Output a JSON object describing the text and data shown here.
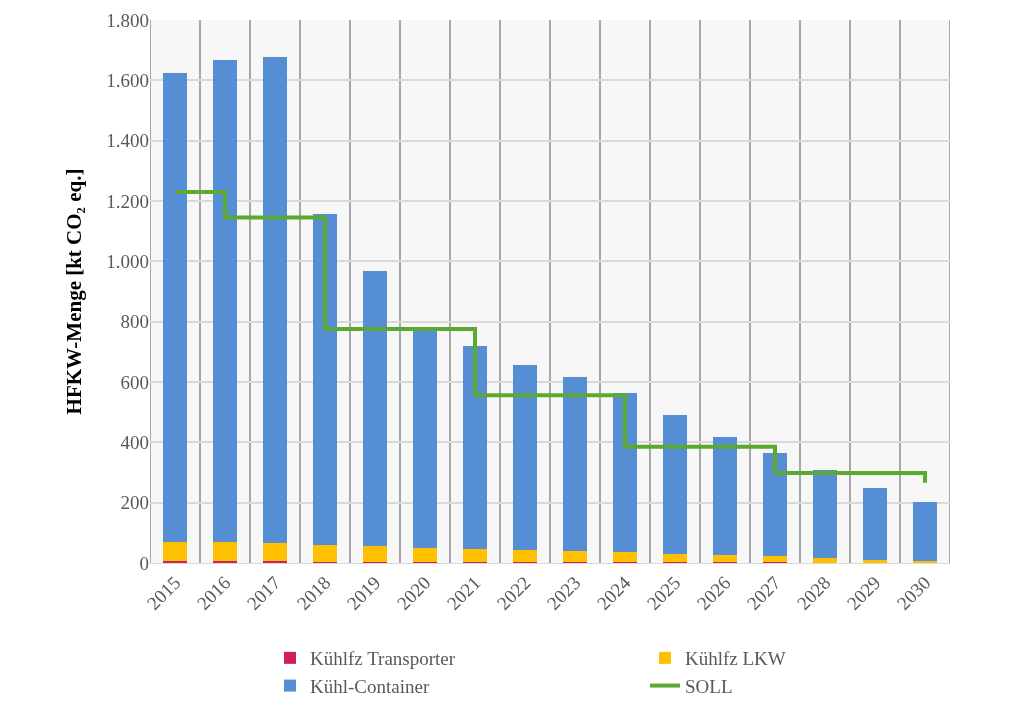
{
  "chart_data": {
    "type": "bar",
    "stacked": true,
    "ylabel": "HFKW-Menge [kt CO₂ eq.]",
    "categories": [
      "2015",
      "2016",
      "2017",
      "2018",
      "2019",
      "2020",
      "2021",
      "2022",
      "2023",
      "2024",
      "2025",
      "2026",
      "2027",
      "2028",
      "2029",
      "2030"
    ],
    "series": [
      {
        "name": "Kühlfz Transporter",
        "color": "#d01f5c",
        "values": [
          7,
          7,
          7,
          3,
          3,
          3,
          3,
          3,
          2,
          2,
          2,
          2,
          2,
          null,
          null,
          null
        ]
      },
      {
        "name": "Kühlfz LKW",
        "color": "#ffc000",
        "values": [
          62,
          62,
          59,
          56,
          52,
          47,
          43,
          40,
          38,
          34,
          29,
          25,
          20,
          17,
          11,
          7
        ]
      },
      {
        "name": "Kühl-Container",
        "color": "#558ed5",
        "values": [
          1555,
          1597,
          1612,
          1097,
          914,
          725,
          674,
          613,
          577,
          527,
          458,
          392,
          342,
          291,
          238,
          196
        ]
      },
      {
        "name": "SOLL",
        "type": "step",
        "color": "#5ba832",
        "values": [
          1230,
          1145,
          1145,
          776,
          776,
          776,
          556,
          556,
          556,
          385,
          385,
          385,
          298,
          298,
          298,
          266
        ]
      }
    ],
    "ylim": [
      0,
      1800
    ],
    "yticks": [
      {
        "value": 0,
        "label": "0"
      },
      {
        "value": 200,
        "label": "200"
      },
      {
        "value": 400,
        "label": "400"
      },
      {
        "value": 600,
        "label": "600"
      },
      {
        "value": 800,
        "label": "800"
      },
      {
        "value": 1000,
        "label": "1.000"
      },
      {
        "value": 1200,
        "label": "1.200"
      },
      {
        "value": 1400,
        "label": "1.400"
      },
      {
        "value": 1600,
        "label": "1.600"
      },
      {
        "value": 1800,
        "label": "1.800"
      }
    ],
    "grid": true,
    "legend": "bottom"
  }
}
